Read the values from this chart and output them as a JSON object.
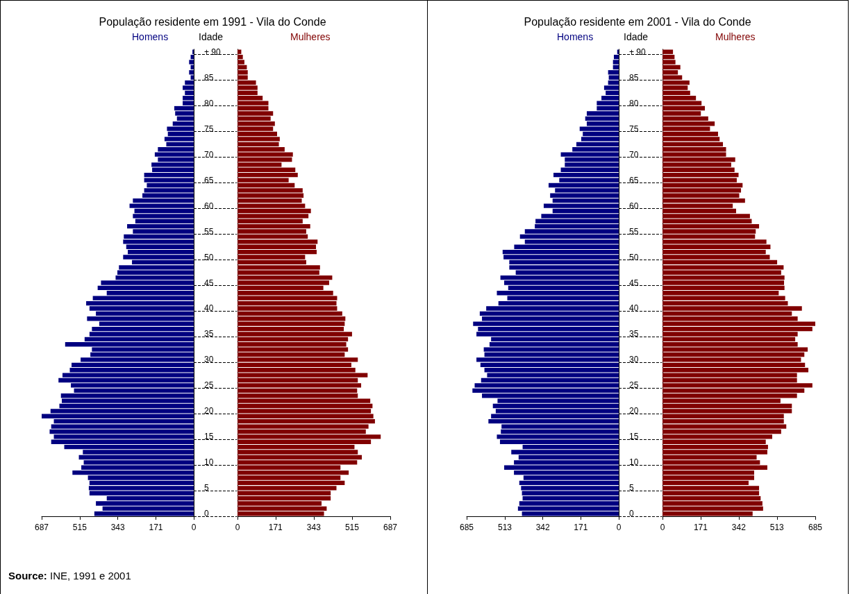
{
  "chart_data": [
    {
      "type": "bar",
      "orientation": "horizontal",
      "title": "População residente em 1991 - Vila do Conde",
      "ylabel": "Idade",
      "categories": [
        "+ 90",
        null,
        null,
        null,
        null,
        "85",
        null,
        null,
        null,
        null,
        "80",
        null,
        null,
        null,
        null,
        "75",
        null,
        null,
        null,
        null,
        "70",
        null,
        null,
        null,
        null,
        "65",
        null,
        null,
        null,
        null,
        "60",
        null,
        null,
        null,
        null,
        "55",
        null,
        null,
        null,
        null,
        "50",
        null,
        null,
        null,
        null,
        "45",
        null,
        null,
        null,
        null,
        "40",
        null,
        null,
        null,
        null,
        "35",
        null,
        null,
        null,
        null,
        "30",
        null,
        null,
        null,
        null,
        "25",
        null,
        null,
        null,
        null,
        "20",
        null,
        null,
        null,
        null,
        "15",
        null,
        null,
        null,
        null,
        "10",
        null,
        null,
        null,
        null,
        "5",
        null,
        null,
        null,
        null,
        "0"
      ],
      "series": [
        {
          "name": "Homens",
          "color": "#000080",
          "values": [
            6,
            14,
            21,
            14,
            21,
            14,
            40,
            50,
            40,
            50,
            50,
            88,
            84,
            76,
            95,
            121,
            117,
            132,
            124,
            162,
            176,
            162,
            191,
            188,
            224,
            224,
            212,
            224,
            232,
            275,
            290,
            268,
            275,
            264,
            301,
            275,
            316,
            319,
            305,
            298,
            319,
            279,
            338,
            345,
            353,
            419,
            434,
            393,
            456,
            486,
            471,
            442,
            482,
            427,
            460,
            471,
            493,
            581,
            460,
            467,
            511,
            552,
            560,
            593,
            611,
            555,
            541,
            600,
            596,
            607,
            647,
            687,
            632,
            644,
            651,
            632,
            644,
            585,
            501,
            519,
            497,
            508,
            548,
            478,
            471,
            474,
            471,
            393,
            442,
            412,
            449
          ]
        }
      ],
      "xlim": [
        687,
        0
      ],
      "xticks": [
        687,
        515,
        343,
        171,
        0
      ],
      "legend": "top",
      "annotations": [
        "Source: INE, 1991 e 2001"
      ]
    },
    {
      "type": "bar",
      "orientation": "horizontal",
      "categories": [
        null,
        null,
        null,
        null,
        null,
        null,
        null,
        null,
        null,
        null,
        null,
        null,
        null,
        null,
        null,
        null,
        null,
        null,
        null,
        null,
        null,
        null,
        null,
        null,
        null,
        null,
        null,
        null,
        null,
        null,
        null,
        null,
        null,
        null,
        null,
        null,
        null,
        null,
        null,
        null,
        null,
        null,
        null,
        null,
        null,
        null,
        null,
        null,
        null,
        null,
        null,
        null,
        null,
        null,
        null,
        null,
        null,
        null,
        null,
        null,
        null,
        null,
        null,
        null,
        null,
        null,
        null,
        null,
        null,
        null,
        null,
        null,
        null,
        null,
        null,
        null,
        null,
        null,
        null,
        null,
        null,
        null,
        null,
        null,
        null,
        null,
        null,
        null,
        null,
        null,
        null
      ],
      "series": [
        {
          "name": "Mulheres",
          "color": "#800000",
          "values": [
            17,
            24,
            31,
            42,
            46,
            46,
            83,
            90,
            90,
            113,
            139,
            139,
            160,
            149,
            168,
            160,
            178,
            190,
            186,
            212,
            249,
            245,
            198,
            260,
            271,
            230,
            257,
            293,
            297,
            289,
            304,
            330,
            319,
            293,
            327,
            309,
            316,
            360,
            353,
            356,
            304,
            309,
            371,
            368,
            426,
            412,
            386,
            430,
            448,
            445,
            448,
            471,
            485,
            482,
            478,
            515,
            497,
            489,
            497,
            482,
            541,
            512,
            530,
            585,
            541,
            556,
            538,
            541,
            597,
            607,
            600,
            611,
            618,
            589,
            577,
            644,
            600,
            526,
            541,
            559,
            538,
            463,
            500,
            463,
            482,
            445,
            419,
            419,
            378,
            401,
            389
          ]
        }
      ],
      "xlim": [
        0,
        687
      ],
      "xticks": [
        0,
        171,
        343,
        515,
        687
      ],
      "legend": "top"
    },
    {
      "type": "bar",
      "orientation": "horizontal",
      "title": "População residente em 2001 - Vila do Conde",
      "ylabel": "Idade",
      "categories": [
        "+ 90",
        null,
        null,
        null,
        null,
        "85",
        null,
        null,
        null,
        null,
        "80",
        null,
        null,
        null,
        null,
        "75",
        null,
        null,
        null,
        null,
        "70",
        null,
        null,
        null,
        null,
        "65",
        null,
        null,
        null,
        null,
        "60",
        null,
        null,
        null,
        null,
        "55",
        null,
        null,
        null,
        null,
        "50",
        null,
        null,
        null,
        null,
        "45",
        null,
        null,
        null,
        null,
        "40",
        null,
        null,
        null,
        null,
        "35",
        null,
        null,
        null,
        null,
        "30",
        null,
        null,
        null,
        null,
        "25",
        null,
        null,
        null,
        null,
        "20",
        null,
        null,
        null,
        null,
        "15",
        null,
        null,
        null,
        null,
        "10",
        null,
        null,
        null,
        null,
        "5",
        null,
        null,
        null,
        null,
        "0"
      ],
      "series": [
        {
          "name": "Homens",
          "color": "#000080",
          "values": [
            7,
            22,
            26,
            26,
            48,
            45,
            48,
            66,
            59,
            78,
            99,
            99,
            144,
            151,
            144,
            176,
            162,
            169,
            191,
            209,
            261,
            243,
            243,
            261,
            294,
            268,
            316,
            287,
            309,
            298,
            338,
            298,
            349,
            375,
            378,
            423,
            445,
            423,
            471,
            523,
            519,
            493,
            493,
            464,
            533,
            516,
            498,
            549,
            502,
            542,
            597,
            626,
            616,
            656,
            634,
            641,
            575,
            582,
            608,
            605,
            641,
            623,
            605,
            593,
            620,
            649,
            659,
            616,
            546,
            567,
            554,
            575,
            587,
            528,
            531,
            549,
            535,
            433,
            484,
            451,
            472,
            516,
            472,
            429,
            448,
            440,
            436,
            433,
            448,
            454,
            436
          ]
        }
      ],
      "xlim": [
        685,
        0
      ],
      "xticks": [
        685,
        513,
        342,
        171,
        0
      ],
      "legend": "top"
    },
    {
      "type": "bar",
      "orientation": "horizontal",
      "categories": [
        null,
        null,
        null,
        null,
        null,
        null,
        null,
        null,
        null,
        null,
        null,
        null,
        null,
        null,
        null,
        null,
        null,
        null,
        null,
        null,
        null,
        null,
        null,
        null,
        null,
        null,
        null,
        null,
        null,
        null,
        null,
        null,
        null,
        null,
        null,
        null,
        null,
        null,
        null,
        null,
        null,
        null,
        null,
        null,
        null,
        null,
        null,
        null,
        null,
        null,
        null,
        null,
        null,
        null,
        null,
        null,
        null,
        null,
        null,
        null,
        null,
        null,
        null,
        null,
        null,
        null,
        null,
        null,
        null,
        null,
        null,
        null,
        null,
        null,
        null,
        null,
        null,
        null,
        null,
        null,
        null,
        null,
        null,
        null,
        null,
        null,
        null,
        null,
        null,
        null,
        null
      ],
      "series": [
        {
          "name": "Mulheres",
          "color": "#800000",
          "values": [
            47,
            54,
            58,
            80,
            69,
            88,
            121,
            113,
            124,
            150,
            175,
            190,
            172,
            205,
            234,
            213,
            249,
            256,
            271,
            285,
            285,
            326,
            308,
            323,
            341,
            333,
            359,
            352,
            344,
            370,
            315,
            330,
            392,
            400,
            433,
            418,
            415,
            466,
            484,
            463,
            481,
            514,
            543,
            532,
            547,
            545,
            547,
            521,
            550,
            562,
            625,
            580,
            606,
            685,
            672,
            606,
            595,
            606,
            651,
            636,
            621,
            639,
            654,
            603,
            603,
            672,
            636,
            603,
            529,
            580,
            580,
            544,
            544,
            555,
            532,
            492,
            463,
            473,
            470,
            422,
            437,
            470,
            411,
            411,
            386,
            433,
            433,
            440,
            448,
            451,
            404
          ]
        }
      ],
      "xlim": [
        0,
        685
      ],
      "xticks": [
        0,
        171,
        342,
        513,
        685
      ],
      "legend": "top"
    }
  ]
}
